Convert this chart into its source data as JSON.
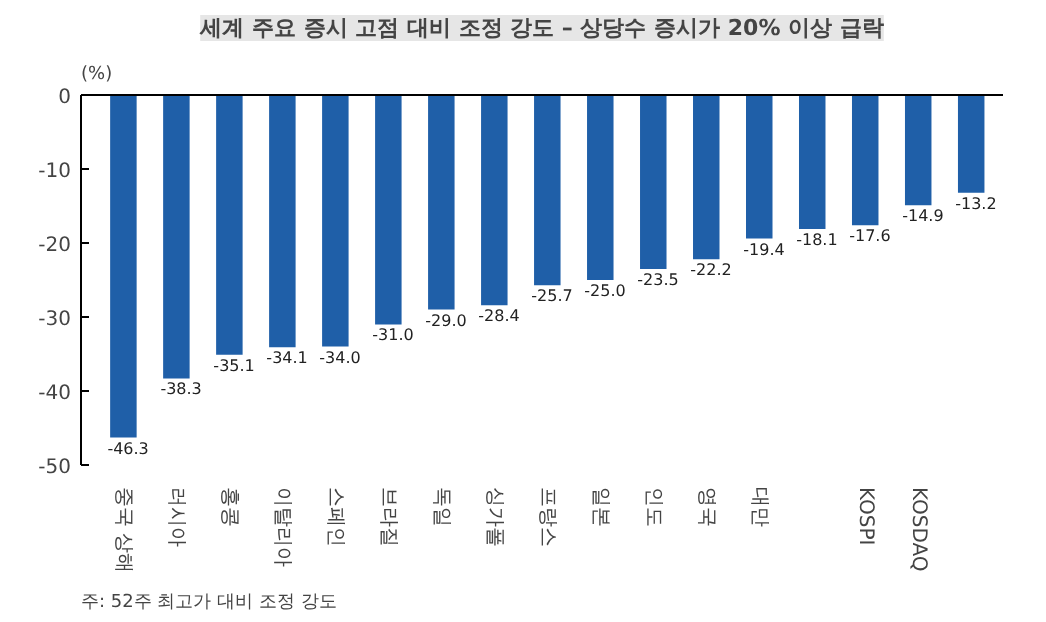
{
  "chart_data": {
    "type": "bar",
    "title": "세계 주요 증시 고점 대비 조정 강도 – 상당수 증시가 20% 이상 급락",
    "ylabel": "(%)",
    "categories": [
      "중국 상해",
      "러시아",
      "홍콩",
      "이탈리아",
      "스페인",
      "브라질",
      "독일",
      "싱가폴",
      "프랑스",
      "일본",
      "인도",
      "영국",
      "대만",
      null,
      "KOSPI",
      "KOSDAQ",
      null
    ],
    "values": [
      -46.3,
      -38.3,
      -35.1,
      -34.1,
      -34.0,
      -31.0,
      -29.0,
      -28.4,
      -25.7,
      -25.0,
      -23.5,
      -22.2,
      -19.4,
      -18.1,
      -17.6,
      -14.9,
      -13.2
    ],
    "color": "#1f5fa8",
    "ylim": [
      -50,
      0
    ],
    "yticks": [
      -50,
      -40,
      -30,
      -20,
      -10,
      0
    ],
    "value_labels": [
      "-46.3",
      "-38.3",
      "-35.1",
      "-34.1",
      "-34.0",
      "-31.0",
      "-29.0",
      "-28.4",
      "-25.7",
      "-25.0",
      "-23.5",
      "-22.2",
      "-19.4",
      "-18.1",
      "-17.6",
      "-14.9",
      "-13.2"
    ],
    "grid": false,
    "annotations": [
      "주: 52주 최고가 대비 조정 강도"
    ]
  }
}
